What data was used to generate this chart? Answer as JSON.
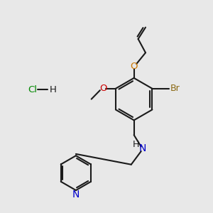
{
  "background_color": "#e8e8e8",
  "fig_size": [
    3.0,
    3.0
  ],
  "dpi": 100,
  "colors": {
    "O_allyl": "#cc7700",
    "O_methoxy": "#cc0000",
    "N": "#0000cc",
    "Br": "#8b6914",
    "bond": "#1a1a1a",
    "H": "#1a1a1a",
    "Cl": "#008800"
  },
  "bond_lw": 1.5,
  "xlim": [
    0,
    10
  ],
  "ylim": [
    0,
    10
  ]
}
